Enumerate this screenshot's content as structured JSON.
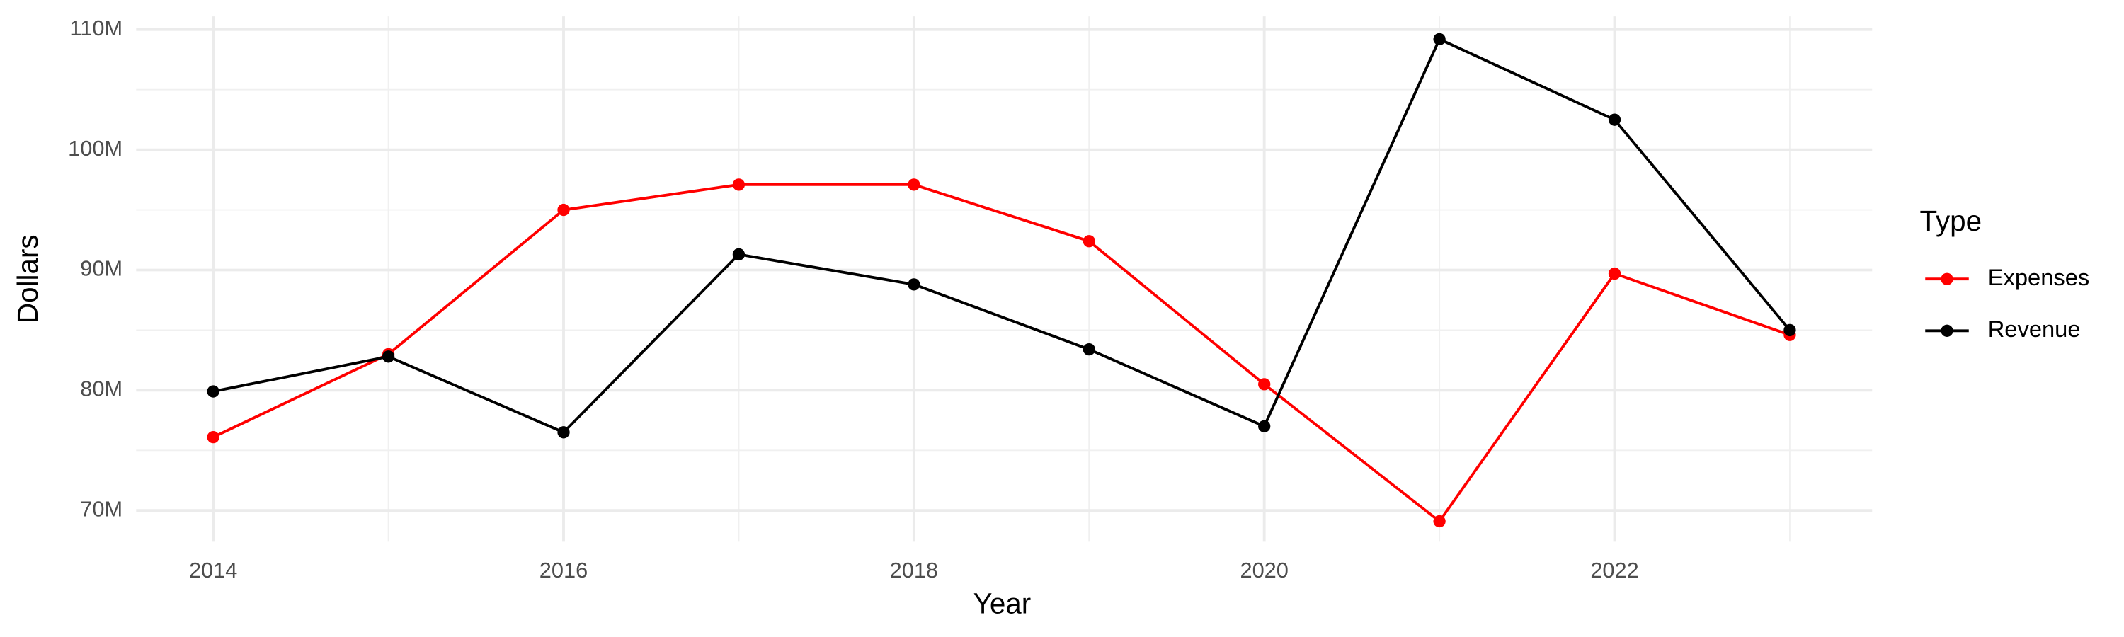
{
  "chart_data": {
    "type": "line",
    "x_label": "Year",
    "y_label": "Dollars",
    "legend_title": "Type",
    "legend_position": "right",
    "grid": true,
    "x": [
      2014,
      2015,
      2016,
      2017,
      2018,
      2019,
      2020,
      2021,
      2022,
      2023
    ],
    "series": [
      {
        "name": "Expenses",
        "color": "#ff0000",
        "values": [
          76100000,
          83000000,
          95000000,
          97100000,
          97100000,
          92400000,
          80500000,
          69100000,
          89700000,
          84600000
        ]
      },
      {
        "name": "Revenue",
        "color": "#000000",
        "values": [
          79900000,
          82800000,
          76500000,
          91300000,
          88800000,
          83400000,
          77000000,
          109200000,
          102500000,
          85000000
        ]
      }
    ],
    "xlim": [
      2013.56,
      2023.47
    ],
    "xticks": [
      2014,
      2016,
      2018,
      2020,
      2022
    ],
    "ylim": [
      67400000,
      111100000
    ],
    "yticks": [
      {
        "value": 70000000,
        "label": "70M"
      },
      {
        "value": 80000000,
        "label": "80M"
      },
      {
        "value": 90000000,
        "label": "90M"
      },
      {
        "value": 100000000,
        "label": "100M"
      },
      {
        "value": 110000000,
        "label": "110M"
      }
    ]
  }
}
